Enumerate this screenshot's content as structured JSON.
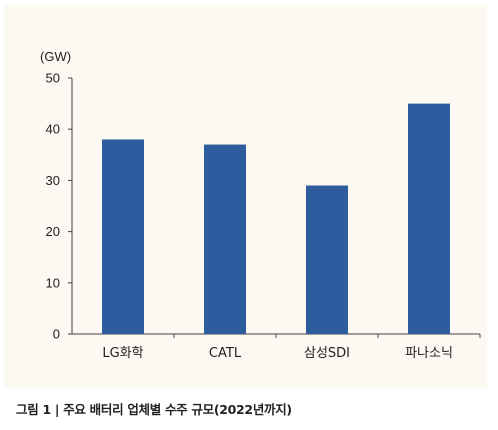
{
  "caption": "그림 1 | 주요 배터리 업체별 수주 규모(2022년까지)",
  "chart_data": {
    "type": "bar",
    "unit_label": "(GW)",
    "categories": [
      "LG화학",
      "CATL",
      "삼성SDI",
      "파나소닉"
    ],
    "values": [
      38,
      37,
      29,
      45
    ],
    "ylim": [
      0,
      50
    ],
    "yticks": [
      0,
      10,
      20,
      30,
      40,
      50
    ],
    "grid": false,
    "legend": "none",
    "bar_color": "#2e5c9e",
    "title": "",
    "xlabel": "",
    "ylabel": ""
  }
}
